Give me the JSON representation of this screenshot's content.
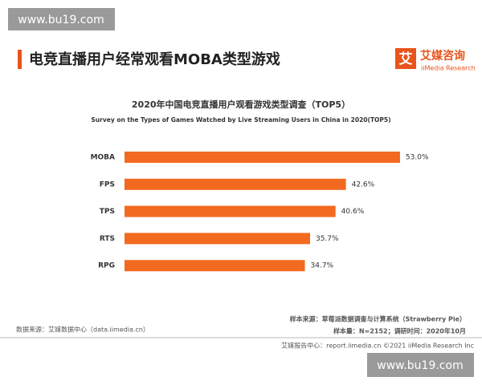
{
  "watermarks": [
    "www.bu19.com",
    "www.bu19.com"
  ],
  "header": {
    "title": "电竞直播用户经常观看MOBA类型游戏",
    "logo_icon": "艾",
    "logo_name": "艾媒咨询",
    "logo_sub": "iiMedia Research"
  },
  "chart_data": {
    "type": "hbar",
    "title": "2020年中国电竞直播用户观看游戏类型调查（TOP5）",
    "subtitle": "Survey on the Types of Games Watched by Live Streaming Users  in China in 2020(TOP5)",
    "categories": [
      "MOBA",
      "FPS",
      "TPS",
      "RTS",
      "RPG"
    ],
    "values": [
      53.0,
      42.6,
      40.6,
      35.7,
      34.7
    ],
    "value_labels": [
      "53.0%",
      "42.6%",
      "40.6%",
      "35.7%",
      "34.7%"
    ],
    "color": "#f26a1f"
  },
  "sources": {
    "left": "数据来源：艾媒数据中心（data.iimedia.cn）",
    "right1": "样本来源：草莓派数据调查与计算系统（Strawberry Pie）",
    "right2": "样本量：N=2152；调研时间：2020年10月"
  },
  "footer": "艾媒报告中心：report.iimedia.cn ©2021  iiMedia Research  Inc"
}
